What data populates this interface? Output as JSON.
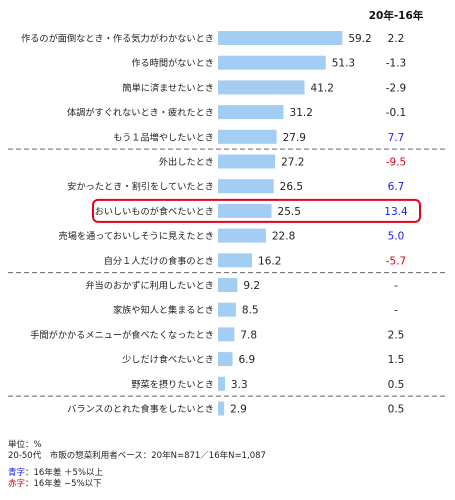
{
  "chart_data": {
    "type": "bar",
    "orientation": "horizontal",
    "column_header": "20年-16年",
    "categories": [
      "作るのが面倒なとき・作る気力がわかないとき",
      "作る時間がないとき",
      "簡単に済ませたいとき",
      "体調がすぐれないとき・疲れたとき",
      "もう１品増やしたいとき",
      "外出したとき",
      "安かったとき・割引をしていたとき",
      "おいしいものが食べたいとき",
      "売場を通っておいしそうに見えたとき",
      "自分１人だけの食事のとき",
      "弁当のおかずに利用したいとき",
      "家族や知人と集まるとき",
      "手間がかかるメニューが食べたくなったとき",
      "少しだけ食べたいとき",
      "野菜を摂りたいとき",
      "バランスのとれた食事をしたいとき"
    ],
    "values": [
      59.2,
      51.3,
      41.2,
      31.2,
      27.9,
      27.2,
      26.5,
      25.5,
      22.8,
      16.2,
      9.2,
      8.5,
      7.8,
      6.9,
      3.3,
      2.9
    ],
    "diffs": [
      "2.2",
      "-1.3",
      "-2.9",
      "-0.1",
      "7.7",
      "-9.5",
      "6.7",
      "13.4",
      "5.0",
      "-5.7",
      "-",
      "-",
      "2.5",
      "1.5",
      "0.5",
      "0.5"
    ],
    "diff_status": [
      "none",
      "none",
      "none",
      "none",
      "up",
      "down",
      "up",
      "up",
      "up",
      "down",
      "none",
      "none",
      "none",
      "none",
      "none",
      "none"
    ],
    "highlight_index": 7,
    "group_separators_after": [
      4,
      9,
      14
    ],
    "bar_color": "#a3cdf2",
    "up_color": "#1a1aff",
    "down_color": "#e0001a",
    "highlight_color": "#e8001c"
  },
  "notes": {
    "unit": "単位：%",
    "base": "20-50代　市販の惣菜利用者ベース：20年N=871／16年N=1,087",
    "blue_key": "青字",
    "blue_desc": "：16年差 ＋5%以上",
    "red_key": "赤字",
    "red_desc": "：16年差 −5%以下"
  }
}
